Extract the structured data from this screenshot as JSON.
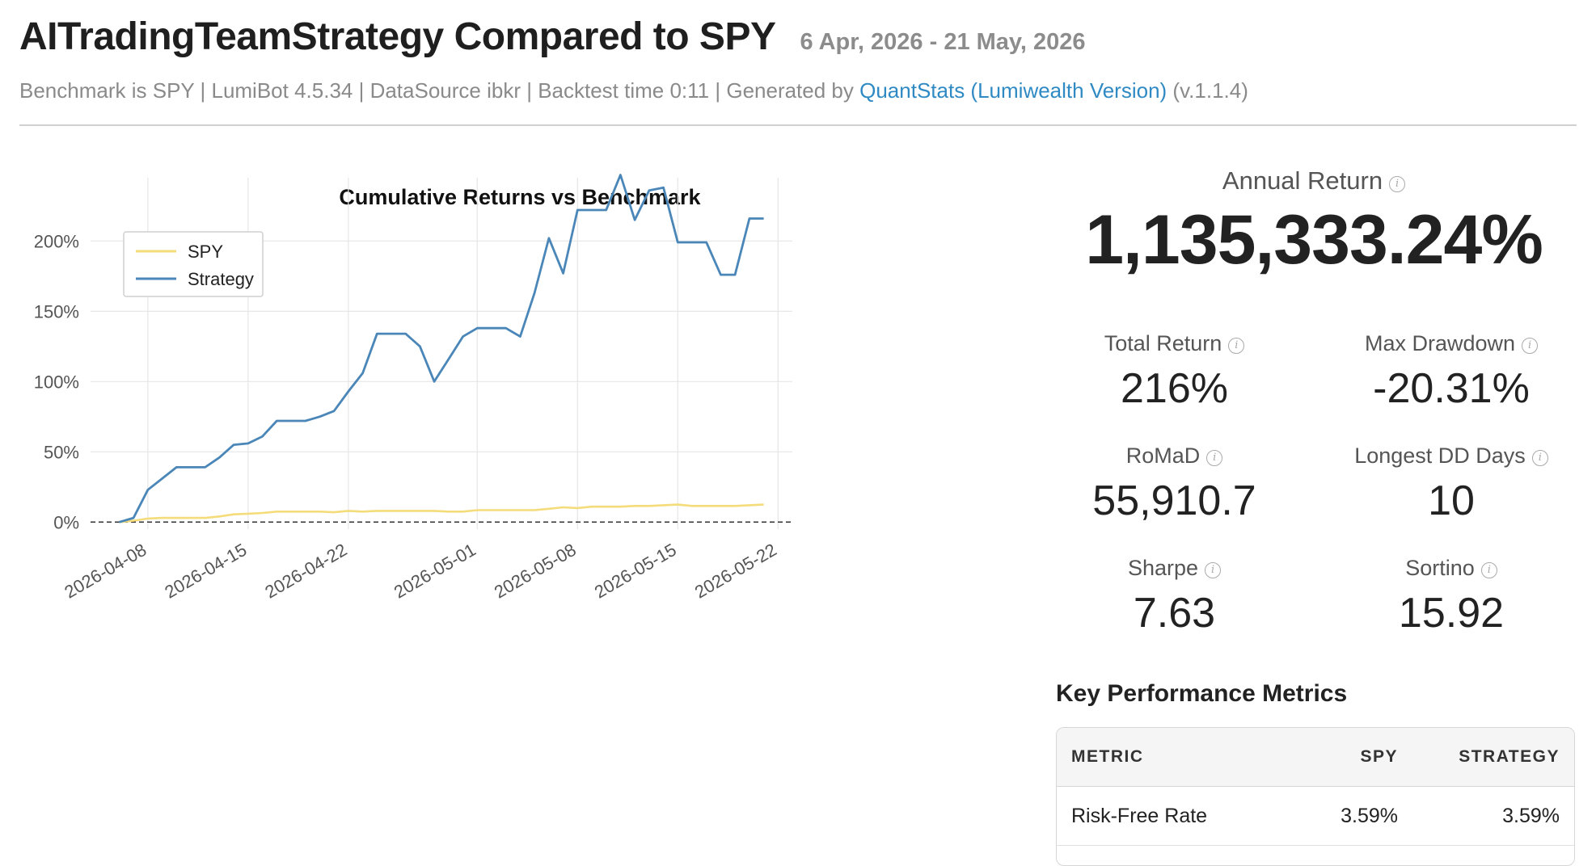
{
  "header": {
    "title": "AITradingTeamStrategy Compared to SPY",
    "date_range": "6 Apr, 2026 - 21 May, 2026",
    "subline_prefix": "Benchmark is SPY | LumiBot 4.5.34 | DataSource ibkr | Backtest time 0:11 | Generated by ",
    "subline_link": "QuantStats (Lumiwealth Version)",
    "subline_suffix": " (v.1.1.4)"
  },
  "kpis": {
    "annual_return": {
      "label": "Annual Return",
      "value": "1,135,333.24%"
    },
    "total_return": {
      "label": "Total Return",
      "value": "216%"
    },
    "max_drawdown": {
      "label": "Max Drawdown",
      "value": "-20.31%"
    },
    "romad": {
      "label": "RoMaD",
      "value": "55,910.7"
    },
    "longest_dd_days": {
      "label": "Longest DD Days",
      "value": "10"
    },
    "sharpe": {
      "label": "Sharpe",
      "value": "7.63"
    },
    "sortino": {
      "label": "Sortino",
      "value": "15.92"
    }
  },
  "key_metrics": {
    "title": "Key Performance Metrics",
    "columns": [
      "METRIC",
      "SPY",
      "STRATEGY"
    ],
    "rows": [
      {
        "metric": "Risk-Free Rate",
        "spy": "3.59%",
        "strategy": "3.59%"
      }
    ]
  },
  "chart_data": {
    "type": "line",
    "title": "Cumulative Returns vs Benchmark",
    "xlabel": "",
    "ylabel": "",
    "x_ticks": [
      "2026-04-08",
      "2026-04-15",
      "2026-04-22",
      "2026-05-01",
      "2026-05-08",
      "2026-05-15",
      "2026-05-22"
    ],
    "y_ticks": [
      "0%",
      "50%",
      "100%",
      "150%",
      "200%"
    ],
    "ylim": [
      -5,
      245
    ],
    "xlim": [
      "2026-04-04",
      "2026-05-23"
    ],
    "grid": true,
    "legend_position": "top-left",
    "zero_line": "dashed",
    "colors": {
      "SPY": "#f5dc7a",
      "Strategy": "#4a86b8"
    },
    "series": [
      {
        "name": "SPY",
        "x": [
          "2026-04-06",
          "2026-04-07",
          "2026-04-08",
          "2026-04-09",
          "2026-04-10",
          "2026-04-11",
          "2026-04-12",
          "2026-04-13",
          "2026-04-14",
          "2026-04-15",
          "2026-04-16",
          "2026-04-17",
          "2026-04-18",
          "2026-04-19",
          "2026-04-20",
          "2026-04-21",
          "2026-04-22",
          "2026-04-23",
          "2026-04-24",
          "2026-04-25",
          "2026-04-26",
          "2026-04-27",
          "2026-04-28",
          "2026-04-29",
          "2026-04-30",
          "2026-05-01",
          "2026-05-02",
          "2026-05-03",
          "2026-05-04",
          "2026-05-05",
          "2026-05-06",
          "2026-05-07",
          "2026-05-08",
          "2026-05-09",
          "2026-05-10",
          "2026-05-11",
          "2026-05-12",
          "2026-05-13",
          "2026-05-14",
          "2026-05-15",
          "2026-05-16",
          "2026-05-17",
          "2026-05-18",
          "2026-05-19",
          "2026-05-20",
          "2026-05-21"
        ],
        "values": [
          0,
          1,
          2.5,
          3,
          3,
          3,
          3,
          4,
          5.5,
          6,
          6.5,
          7.5,
          7.5,
          7.5,
          7.5,
          7,
          8,
          7.5,
          8,
          8,
          8,
          8,
          8,
          7.5,
          7.5,
          8.5,
          8.5,
          8.5,
          8.5,
          8.5,
          9.5,
          10.5,
          10,
          11,
          11,
          11,
          11.5,
          11.5,
          12,
          12.5,
          11.5,
          11.5,
          11.5,
          11.5,
          12,
          12.5
        ]
      },
      {
        "name": "Strategy",
        "x": [
          "2026-04-06",
          "2026-04-07",
          "2026-04-08",
          "2026-04-09",
          "2026-04-10",
          "2026-04-11",
          "2026-04-12",
          "2026-04-13",
          "2026-04-14",
          "2026-04-15",
          "2026-04-16",
          "2026-04-17",
          "2026-04-18",
          "2026-04-19",
          "2026-04-20",
          "2026-04-21",
          "2026-04-22",
          "2026-04-23",
          "2026-04-24",
          "2026-04-25",
          "2026-04-26",
          "2026-04-27",
          "2026-04-28",
          "2026-04-29",
          "2026-04-30",
          "2026-05-01",
          "2026-05-02",
          "2026-05-03",
          "2026-05-04",
          "2026-05-05",
          "2026-05-06",
          "2026-05-07",
          "2026-05-08",
          "2026-05-09",
          "2026-05-10",
          "2026-05-11",
          "2026-05-12",
          "2026-05-13",
          "2026-05-14",
          "2026-05-15",
          "2026-05-16",
          "2026-05-17",
          "2026-05-18",
          "2026-05-19",
          "2026-05-20",
          "2026-05-21"
        ],
        "values": [
          0,
          3,
          23,
          31,
          39,
          39,
          39,
          46,
          55,
          56,
          61,
          72,
          72,
          72,
          75,
          79,
          93,
          106,
          134,
          134,
          134,
          125,
          100,
          116,
          132,
          138,
          138,
          138,
          132,
          163,
          202,
          177,
          222,
          222,
          222,
          247,
          215,
          236,
          238,
          199,
          199,
          199,
          176,
          176,
          216,
          216
        ]
      }
    ]
  }
}
